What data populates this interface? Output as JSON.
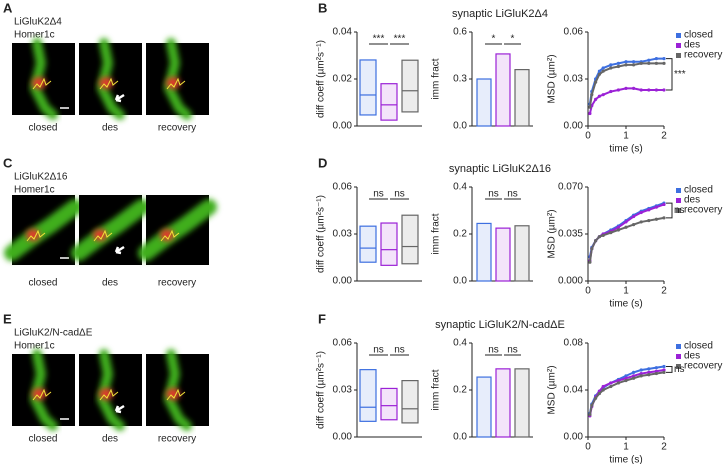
{
  "figure": {
    "rows": [
      {
        "letter": "A",
        "labels": [
          [
            {
              "text": "LiGluK2Δ4",
              "color": "#44c21f"
            }
          ],
          [
            {
              "text": "Homer1c",
              "color": "#e0241b"
            }
          ]
        ],
        "captions": [
          {
            "text": "closed",
            "color": "#3d6fe0"
          },
          {
            "text": "des",
            "color": "#9b21d6"
          },
          {
            "text": "recovery",
            "color": "#666666"
          }
        ],
        "chart_letter": "B"
      },
      {
        "letter": "C",
        "labels": [
          [
            {
              "text": "LiGluK2Δ16",
              "color": "#44c21f"
            }
          ],
          [
            {
              "text": "Homer1c",
              "color": "#e0241b"
            }
          ]
        ],
        "captions": [
          {
            "text": "closed",
            "color": "#3d6fe0"
          },
          {
            "text": "des",
            "color": "#9b21d6"
          },
          {
            "text": "recovery",
            "color": "#666666"
          }
        ],
        "chart_letter": "D"
      },
      {
        "letter": "E",
        "labels": [
          [
            {
              "text": "LiGluK2/",
              "color": "#44c21f"
            },
            {
              "text": "N-cadΔE",
              "color": "#222222"
            }
          ],
          [
            {
              "text": "Homer1c",
              "color": "#e0241b"
            }
          ]
        ],
        "captions": [
          {
            "text": "closed",
            "color": "#3d6fe0"
          },
          {
            "text": "des",
            "color": "#9b21d6"
          },
          {
            "text": "recovery",
            "color": "#666666"
          }
        ],
        "chart_letter": "F"
      }
    ]
  },
  "chart_data": [
    {
      "type": "box",
      "ylabel": "diff coeff (µm²s⁻¹)",
      "ylim": [
        0,
        0.04
      ],
      "yticks": [
        {
          "value": 0,
          "label": "0.00"
        },
        0.02,
        0.04
      ],
      "boxes": [
        {
          "color": "#3d6fe0",
          "q1": 0.0047,
          "median": 0.0132,
          "q3": 0.0281
        },
        {
          "color": "#9b21d6",
          "q1": 0.0025,
          "median": 0.009,
          "q3": 0.018
        },
        {
          "color": "#666666",
          "q1": 0.006,
          "median": 0.015,
          "q3": 0.028
        }
      ],
      "annotations": [
        "***",
        "***"
      ]
    },
    {
      "type": "bar",
      "title": "synaptic LiGluK2Δ4",
      "ylabel": "imm fract",
      "ylim": [
        0,
        0.6
      ],
      "yticks": [
        {
          "value": 0,
          "label": "0.0"
        },
        0.3,
        0.6
      ],
      "values": [
        0.3,
        0.46,
        0.36
      ],
      "colors": [
        "#3d6fe0",
        "#9b21d6",
        "#666666"
      ],
      "annotations": [
        "*",
        "*"
      ]
    },
    {
      "type": "line",
      "ylabel": "MSD (µm²)",
      "xlabel": "time (s)",
      "xlim": [
        0,
        2
      ],
      "xticks": [
        0,
        1,
        2
      ],
      "ylim": [
        0,
        0.06
      ],
      "yticks": [
        {
          "value": 0,
          "label": "0.00"
        },
        0.03,
        0.06
      ],
      "x": [
        0.05,
        0.1,
        0.2,
        0.3,
        0.4,
        0.6,
        0.8,
        1.0,
        1.2,
        1.4,
        1.6,
        1.8,
        2.0
      ],
      "series": [
        {
          "name": "closed",
          "color": "#3d6fe0",
          "values": [
            0.014,
            0.022,
            0.03,
            0.035,
            0.037,
            0.039,
            0.04,
            0.041,
            0.041,
            0.041,
            0.042,
            0.043,
            0.043
          ]
        },
        {
          "name": "des",
          "color": "#9b21d6",
          "values": [
            0.008,
            0.013,
            0.017,
            0.019,
            0.02,
            0.022,
            0.023,
            0.024,
            0.024,
            0.023,
            0.023,
            0.023,
            0.023
          ]
        },
        {
          "name": "recovery",
          "color": "#666666",
          "values": [
            0.012,
            0.02,
            0.028,
            0.033,
            0.035,
            0.037,
            0.038,
            0.039,
            0.039,
            0.04,
            0.04,
            0.04,
            0.04
          ]
        }
      ],
      "annotations": [
        "***"
      ]
    },
    {
      "type": "box",
      "ylabel": "diff coeff (µm²s⁻¹)",
      "ylim": [
        0,
        0.06
      ],
      "yticks": [
        {
          "value": 0,
          "label": "0.00"
        },
        0.03,
        0.06
      ],
      "boxes": [
        {
          "color": "#3d6fe0",
          "q1": 0.012,
          "median": 0.021,
          "q3": 0.035
        },
        {
          "color": "#9b21d6",
          "q1": 0.01,
          "median": 0.02,
          "q3": 0.037
        },
        {
          "color": "#666666",
          "q1": 0.011,
          "median": 0.022,
          "q3": 0.042
        }
      ],
      "annotations": [
        "ns",
        "ns"
      ]
    },
    {
      "type": "bar",
      "title": "synaptic LiGluK2Δ16",
      "ylabel": "imm fract",
      "ylim": [
        0,
        0.4
      ],
      "yticks": [
        {
          "value": 0,
          "label": "0.0"
        },
        0.2,
        0.4
      ],
      "values": [
        0.245,
        0.225,
        0.235
      ],
      "colors": [
        "#3d6fe0",
        "#9b21d6",
        "#666666"
      ],
      "annotations": [
        "ns",
        "ns"
      ]
    },
    {
      "type": "line",
      "ylabel": "MSD (µm²)",
      "xlabel": "time (s)",
      "xlim": [
        0,
        2
      ],
      "xticks": [
        0,
        1,
        2
      ],
      "ylim": [
        0,
        0.07
      ],
      "yticks": [
        {
          "value": 0,
          "label": "0.000"
        },
        0.035,
        {
          "value": 0.07,
          "label": "0.070"
        }
      ],
      "x": [
        0.05,
        0.1,
        0.2,
        0.3,
        0.4,
        0.6,
        0.8,
        1.0,
        1.2,
        1.4,
        1.6,
        1.8,
        2.0
      ],
      "series": [
        {
          "name": "closed",
          "color": "#3d6fe0",
          "values": [
            0.018,
            0.025,
            0.03,
            0.033,
            0.035,
            0.038,
            0.041,
            0.045,
            0.049,
            0.052,
            0.054,
            0.056,
            0.058
          ]
        },
        {
          "name": "des",
          "color": "#9b21d6",
          "values": [
            0.015,
            0.024,
            0.03,
            0.033,
            0.035,
            0.037,
            0.04,
            0.044,
            0.048,
            0.051,
            0.053,
            0.055,
            0.057
          ]
        },
        {
          "name": "recovery",
          "color": "#666666",
          "values": [
            0.014,
            0.024,
            0.03,
            0.033,
            0.034,
            0.036,
            0.038,
            0.04,
            0.042,
            0.044,
            0.045,
            0.046,
            0.047
          ]
        }
      ],
      "annotations": [
        "ns"
      ]
    },
    {
      "type": "box",
      "ylabel": "diff coeff (µm²s⁻¹)",
      "ylim": [
        0,
        0.06
      ],
      "yticks": [
        {
          "value": 0,
          "label": "0.00"
        },
        0.03,
        0.06
      ],
      "boxes": [
        {
          "color": "#3d6fe0",
          "q1": 0.01,
          "median": 0.019,
          "q3": 0.043
        },
        {
          "color": "#9b21d6",
          "q1": 0.011,
          "median": 0.02,
          "q3": 0.031
        },
        {
          "color": "#666666",
          "q1": 0.009,
          "median": 0.018,
          "q3": 0.036
        }
      ],
      "annotations": [
        "ns",
        "ns"
      ]
    },
    {
      "type": "bar",
      "title": "synaptic LiGluK2/N-cadΔE",
      "ylabel": "imm fract",
      "ylim": [
        0,
        0.4
      ],
      "yticks": [
        {
          "value": 0,
          "label": "0.0"
        },
        0.2,
        0.4
      ],
      "values": [
        0.255,
        0.29,
        0.29
      ],
      "colors": [
        "#3d6fe0",
        "#9b21d6",
        "#666666"
      ],
      "annotations": [
        "ns",
        "ns"
      ]
    },
    {
      "type": "line",
      "ylabel": "MSD (µm²)",
      "xlabel": "time (s)",
      "xlim": [
        0,
        2
      ],
      "xticks": [
        0,
        1,
        2
      ],
      "ylim": [
        0,
        0.08
      ],
      "yticks": [
        {
          "value": 0,
          "label": "0.00"
        },
        0.04,
        0.08
      ],
      "x": [
        0.05,
        0.1,
        0.2,
        0.3,
        0.4,
        0.6,
        0.8,
        1.0,
        1.2,
        1.4,
        1.6,
        1.8,
        2.0
      ],
      "series": [
        {
          "name": "closed",
          "color": "#3d6fe0",
          "values": [
            0.02,
            0.028,
            0.035,
            0.039,
            0.042,
            0.046,
            0.049,
            0.052,
            0.055,
            0.057,
            0.058,
            0.059,
            0.06
          ]
        },
        {
          "name": "des",
          "color": "#9b21d6",
          "values": [
            0.018,
            0.026,
            0.034,
            0.039,
            0.043,
            0.046,
            0.048,
            0.05,
            0.052,
            0.054,
            0.055,
            0.056,
            0.057
          ]
        },
        {
          "name": "recovery",
          "color": "#666666",
          "values": [
            0.019,
            0.027,
            0.033,
            0.037,
            0.04,
            0.043,
            0.046,
            0.048,
            0.05,
            0.052,
            0.053,
            0.054,
            0.055
          ]
        }
      ],
      "annotations": [
        "ns"
      ]
    }
  ]
}
